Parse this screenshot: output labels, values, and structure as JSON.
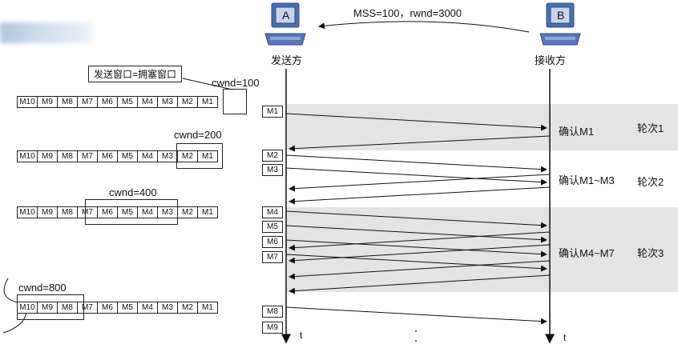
{
  "top_message": "MSS=100，rwnd=3000",
  "hosts": {
    "sender": {
      "letter": "A",
      "label": "发送方"
    },
    "receiver": {
      "letter": "B",
      "label": "接收方"
    }
  },
  "window_note": "发送窗口=拥塞窗口",
  "cwnd_labels": [
    "cwnd=100",
    "cwnd=200",
    "cwnd=400",
    "cwnd=800"
  ],
  "packet_row": [
    "M10",
    "M9",
    "M8",
    "M7",
    "M6",
    "M5",
    "M4",
    "M3",
    "M2",
    "M1"
  ],
  "segments": [
    "M1",
    "M2",
    "M3",
    "M4",
    "M5",
    "M6",
    "M7",
    "M8",
    "M9"
  ],
  "acks": [
    "确认M1",
    "确认M1~M3",
    "确认M4~M7"
  ],
  "rounds": [
    "轮次1",
    "轮次2",
    "轮次3"
  ],
  "time_label": "t"
}
